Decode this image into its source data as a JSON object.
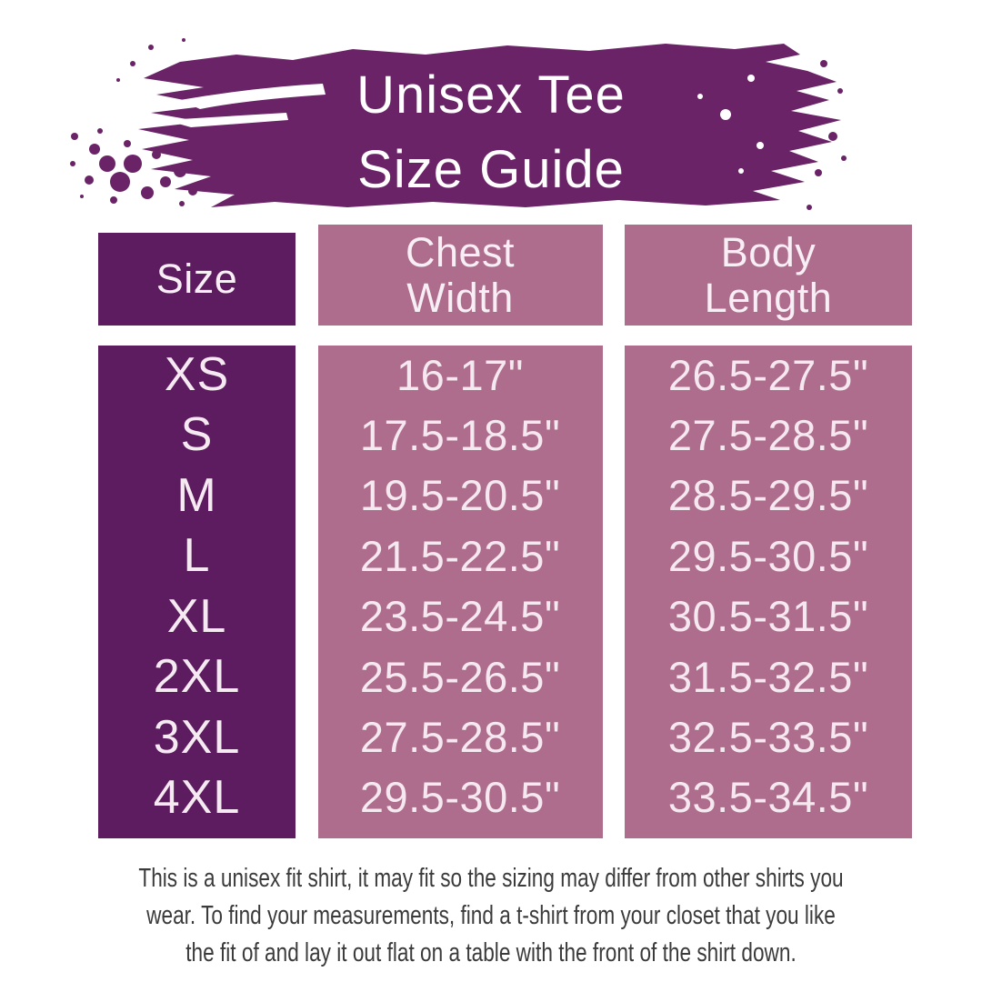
{
  "title": {
    "lines": [
      "Unisex Tee",
      "Size Guide"
    ]
  },
  "table": {
    "columns": [
      {
        "label": "Size",
        "lines": [
          "Size"
        ]
      },
      {
        "label": "Chest Width",
        "lines": [
          "Chest",
          "Width"
        ]
      },
      {
        "label": "Body Length",
        "lines": [
          "Body",
          "Length"
        ]
      }
    ],
    "rows": [
      {
        "size": "XS",
        "chest": "16-17\"",
        "body": "26.5-27.5\""
      },
      {
        "size": "S",
        "chest": "17.5-18.5\"",
        "body": "27.5-28.5\""
      },
      {
        "size": "M",
        "chest": "19.5-20.5\"",
        "body": "28.5-29.5\""
      },
      {
        "size": "L",
        "chest": "21.5-22.5\"",
        "body": "29.5-30.5\""
      },
      {
        "size": "XL",
        "chest": "23.5-24.5\"",
        "body": "30.5-31.5\""
      },
      {
        "size": "2XL",
        "chest": "25.5-26.5\"",
        "body": "31.5-32.5\""
      },
      {
        "size": "3XL",
        "chest": "27.5-28.5\"",
        "body": "32.5-33.5\""
      },
      {
        "size": "4XL",
        "chest": "29.5-30.5\"",
        "body": "33.5-34.5\""
      }
    ]
  },
  "note": {
    "text": "This is a unisex fit shirt, it may fit so the sizing may differ from other shirts you wear. To find your measurements, find a t-shirt from your closet that you like the fit of and lay it out flat on a table with the front of the shirt down.",
    "lines": [
      "This is a unisex fit shirt, it may fit so the sizing may differ from other shirts you",
      "wear. To find your measurements, find a t-shirt from your closet that you like",
      "the fit of and lay it out flat on a table with the front of the shirt down."
    ]
  },
  "colors": {
    "brush_purple": "#6B2367",
    "size_column_purple": "#5D1C5F",
    "measure_column_mauve": "#AF6D8D",
    "table_text": "#F6EAF2",
    "title_text": "#FFFFFF",
    "note_text": "#3B3B3B",
    "background": "#FFFFFF"
  }
}
